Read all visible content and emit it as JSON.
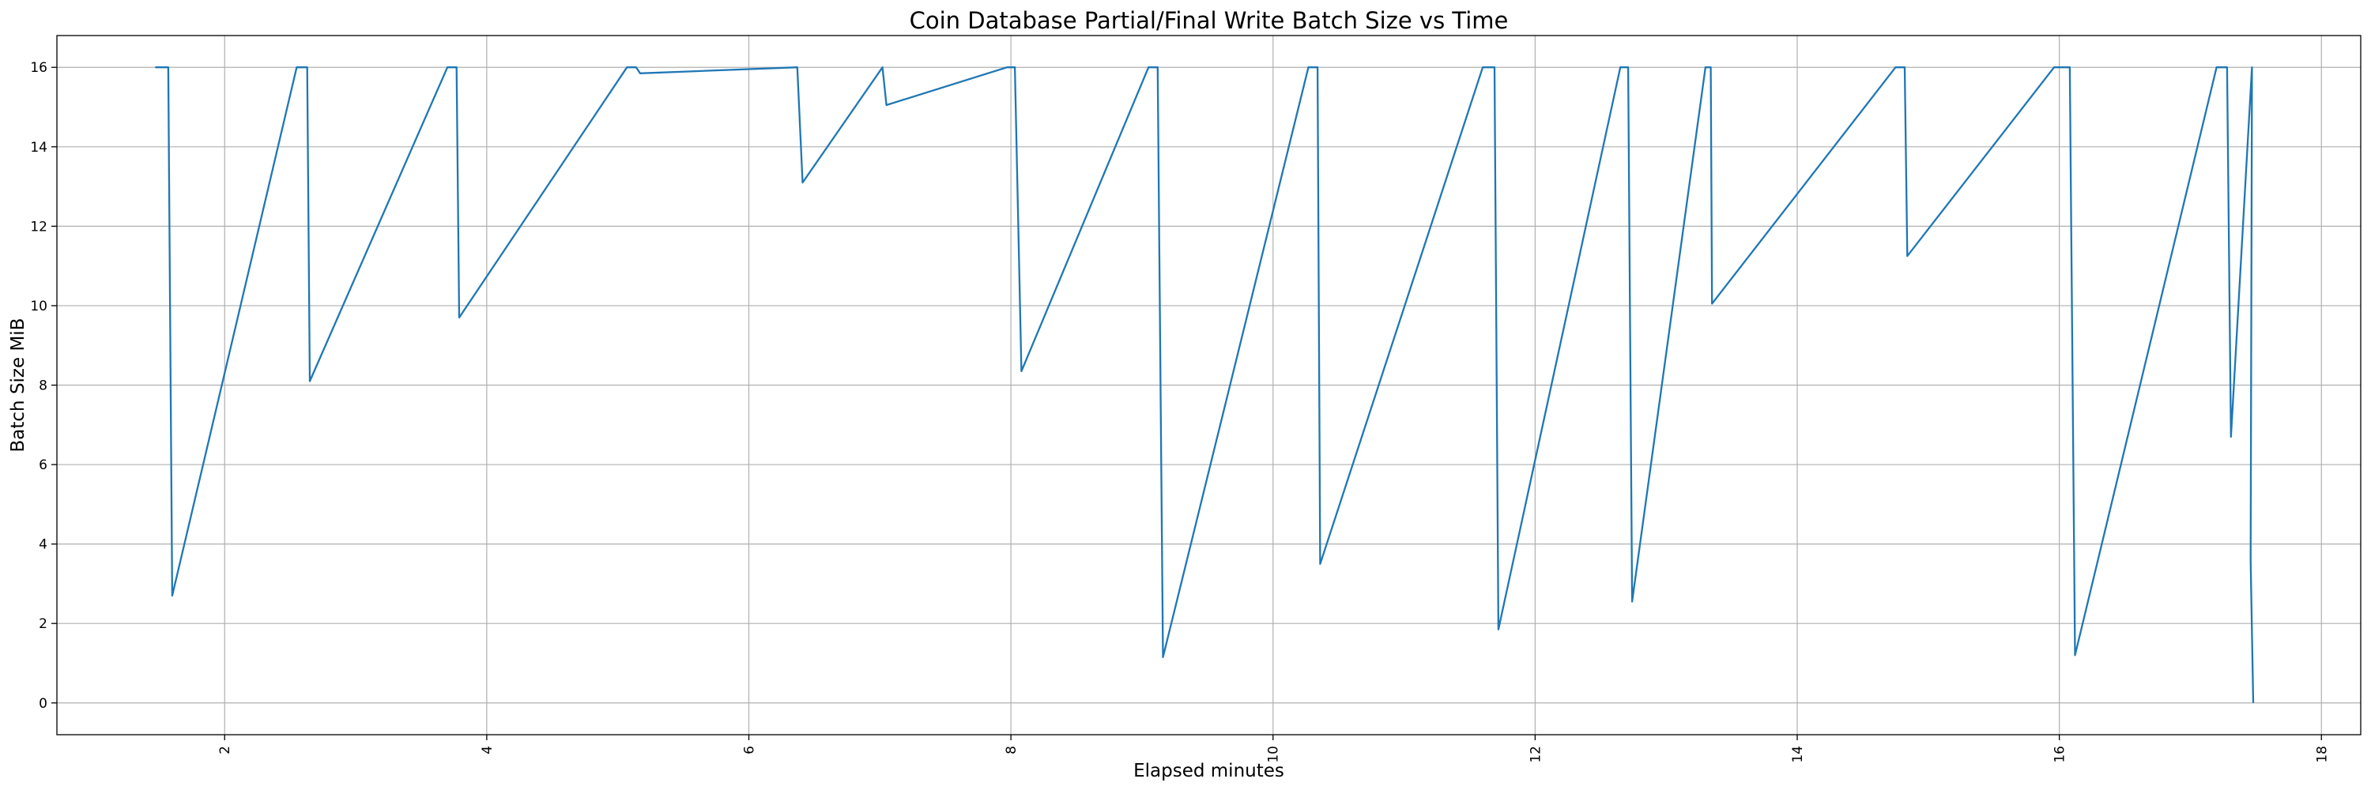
{
  "chart_data": {
    "type": "line",
    "title": "Coin Database Partial/Final Write Batch Size vs Time",
    "xlabel": "Elapsed minutes",
    "ylabel": "Batch Size MiB",
    "xlim": [
      0.72,
      18.3
    ],
    "ylim": [
      -0.8,
      16.8
    ],
    "xticks": [
      2,
      4,
      6,
      8,
      10,
      12,
      14,
      16,
      18
    ],
    "yticks": [
      0,
      2,
      4,
      6,
      8,
      10,
      12,
      14,
      16
    ],
    "xtick_labels": [
      "2",
      "4",
      "6",
      "8",
      "10",
      "12",
      "14",
      "16",
      "18"
    ],
    "ytick_labels": [
      "0",
      "2",
      "4",
      "6",
      "8",
      "10",
      "12",
      "14",
      "16"
    ],
    "xtick_rotation": "vertical",
    "grid": true,
    "color": "#1f77b4",
    "series": [
      {
        "x": [
          1.47,
          1.57,
          1.6,
          2.55,
          2.63,
          2.65,
          3.7,
          3.77,
          3.79,
          5.07,
          5.14,
          5.17,
          6.37,
          6.41,
          7.02,
          7.05,
          7.97,
          8.03,
          8.08,
          9.05,
          9.12,
          9.16,
          10.27,
          10.34,
          10.36,
          11.6,
          11.69,
          11.72,
          12.65,
          12.71,
          12.74,
          13.3,
          13.34,
          13.35,
          14.75,
          14.82,
          14.84,
          15.96,
          16.08,
          16.12,
          17.2,
          17.28,
          17.31,
          17.47,
          17.46,
          17.48
        ],
        "y": [
          16,
          16,
          2.7,
          16,
          16,
          8.1,
          16,
          16,
          9.7,
          16,
          16,
          15.85,
          16,
          13.1,
          16,
          15.05,
          16,
          16,
          8.35,
          16,
          16,
          1.15,
          16,
          16,
          3.5,
          16,
          16,
          1.85,
          16,
          16,
          2.55,
          16,
          16,
          10.05,
          16,
          16,
          11.25,
          16,
          16,
          1.2,
          16,
          16,
          6.7,
          16,
          3.6,
          0
        ]
      }
    ]
  }
}
